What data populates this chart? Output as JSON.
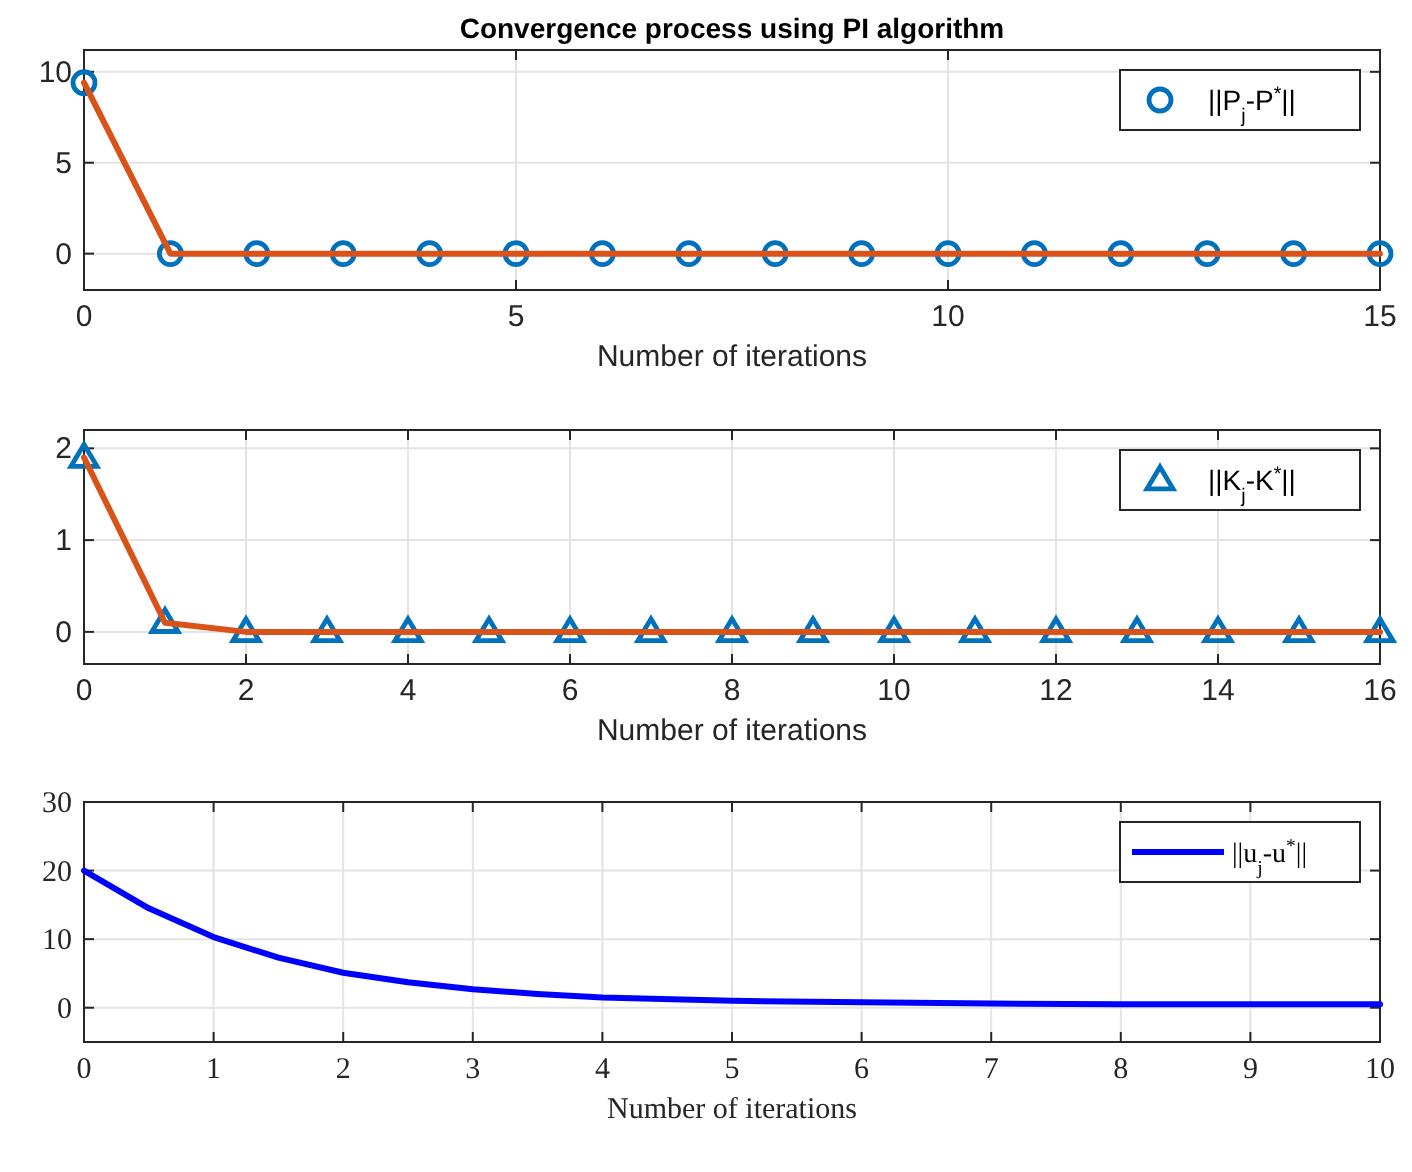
{
  "chart_data": [
    {
      "type": "line",
      "title": "Convergence process using PI algorithm",
      "xlabel": "Number of iterations",
      "x": [
        0,
        1,
        2,
        3,
        4,
        5,
        6,
        7,
        8,
        9,
        10,
        11,
        12,
        13,
        14,
        15
      ],
      "xlim": [
        0,
        15
      ],
      "xticks": [
        0,
        5,
        10,
        15
      ],
      "ylim": [
        -2,
        11.2
      ],
      "yticks": [
        0,
        5,
        10
      ],
      "grid": true,
      "legend": "top right",
      "series": [
        {
          "type": "scatter",
          "name": "||P$_{j}$-P$^{*}$||",
          "color": "#0072bd",
          "marker": "circle",
          "values": [
            9.4,
            0,
            0,
            0,
            0,
            0,
            0,
            0,
            0,
            0,
            0,
            0,
            0,
            0,
            0,
            0
          ]
        },
        {
          "color": "#d95319",
          "values": [
            9.4,
            0,
            0,
            0,
            0,
            0,
            0,
            0,
            0,
            0,
            0,
            0,
            0,
            0,
            0,
            0
          ]
        }
      ]
    },
    {
      "type": "line",
      "xlabel": "Number of iterations",
      "x": [
        0,
        1,
        2,
        3,
        4,
        5,
        6,
        7,
        8,
        9,
        10,
        11,
        12,
        13,
        14,
        15,
        16
      ],
      "xlim": [
        0,
        16
      ],
      "xticks": [
        0,
        2,
        4,
        6,
        8,
        10,
        12,
        14,
        16
      ],
      "ylim": [
        -0.35,
        2.2
      ],
      "yticks": [
        0,
        1,
        2
      ],
      "grid": true,
      "legend": "top right",
      "series": [
        {
          "type": "scatter",
          "name": "||K$_{j}$-K$^{*}$||",
          "color": "#0072bd",
          "marker": "triangle",
          "values": [
            1.9,
            0.1,
            0,
            0,
            0,
            0,
            0,
            0,
            0,
            0,
            0,
            0,
            0,
            0,
            0,
            0,
            0
          ]
        },
        {
          "color": "#d95319",
          "values": [
            1.9,
            0.1,
            0,
            0,
            0,
            0,
            0,
            0,
            0,
            0,
            0,
            0,
            0,
            0,
            0,
            0,
            0
          ]
        }
      ]
    },
    {
      "type": "line",
      "xlabel": "Number of iterations",
      "x": [
        0,
        0.5,
        1,
        1.5,
        2,
        2.5,
        3,
        3.5,
        4,
        5,
        6,
        7,
        8,
        9,
        10
      ],
      "xlim": [
        0,
        10
      ],
      "xticks": [
        0,
        1,
        2,
        3,
        4,
        5,
        6,
        7,
        8,
        9,
        10
      ],
      "ylim": [
        -5,
        30
      ],
      "yticks": [
        0,
        10,
        20,
        30
      ],
      "grid": true,
      "legend": "top right",
      "series": [
        {
          "name": "||u$_{j}$-u$^{*}$||",
          "color": "#0000ff",
          "values": [
            20,
            14.5,
            10.3,
            7.3,
            5.1,
            3.7,
            2.7,
            2.0,
            1.5,
            1.0,
            0.8,
            0.6,
            0.5,
            0.5,
            0.5
          ]
        }
      ]
    }
  ]
}
